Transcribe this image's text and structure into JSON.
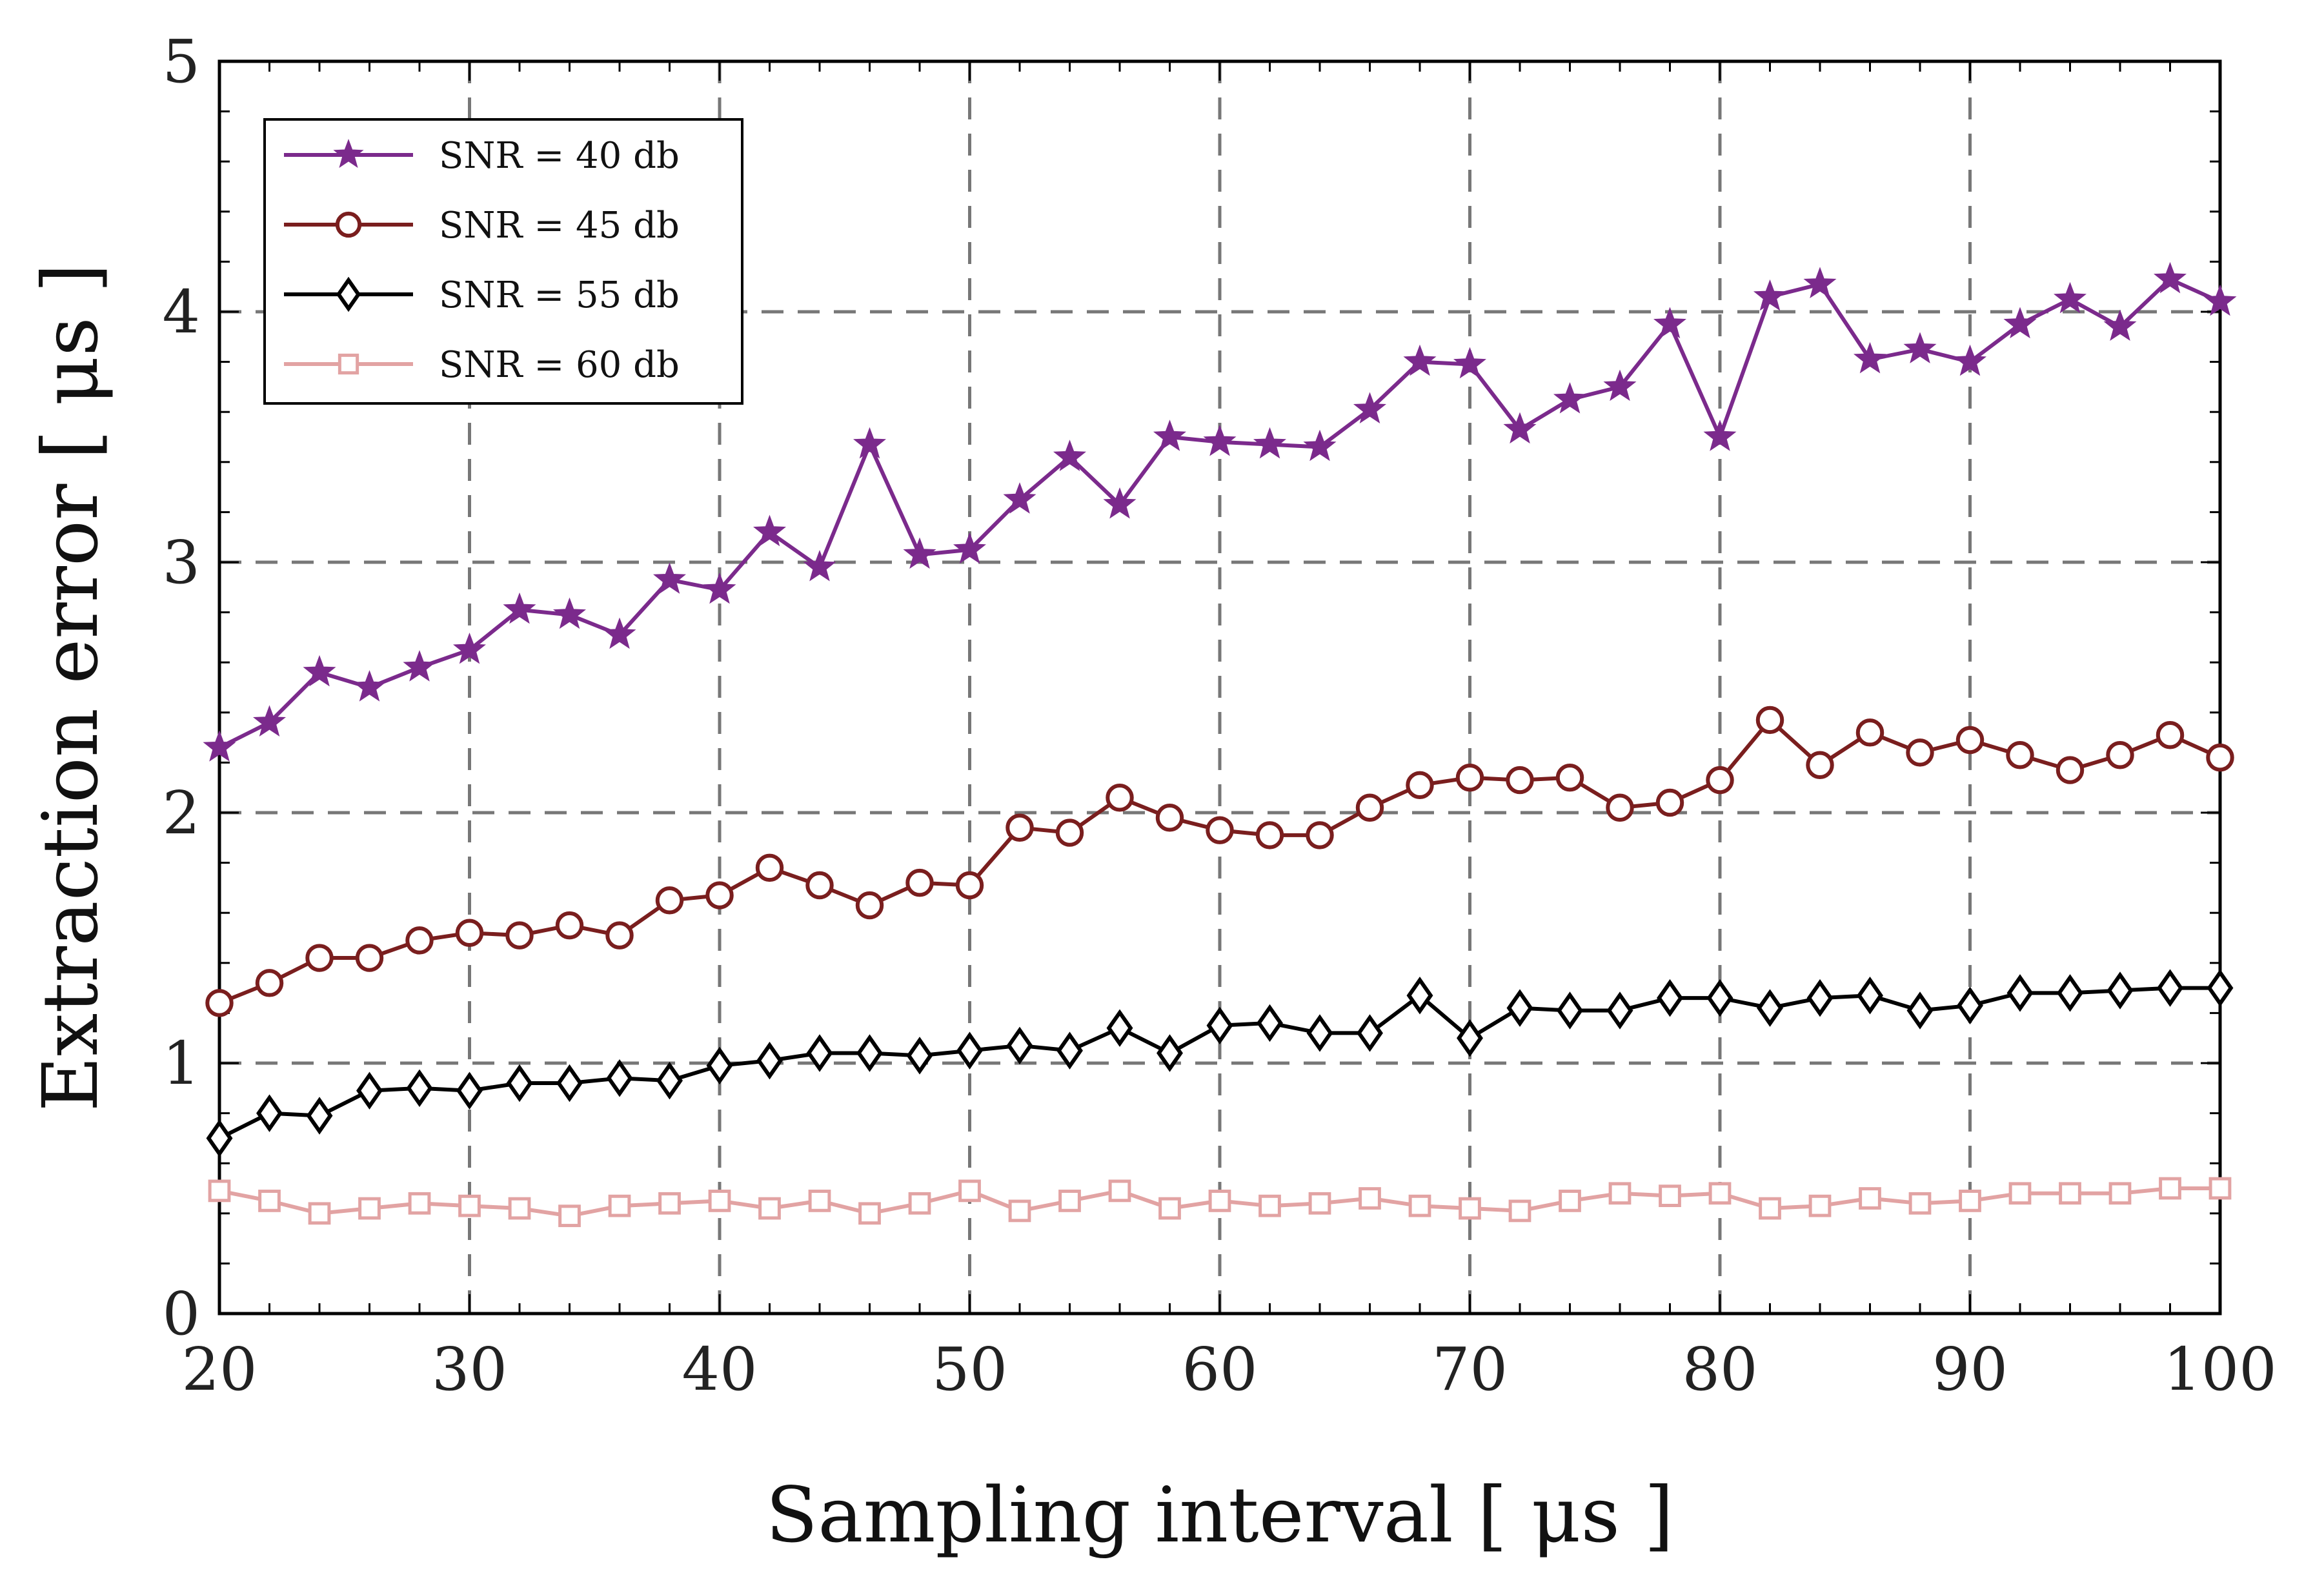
{
  "chart_data": {
    "type": "line",
    "title": "",
    "xlabel": "Sampling interval [ μs ]",
    "ylabel": "Extraction error [ μs ]",
    "xlim": [
      20,
      100
    ],
    "ylim": [
      0,
      5
    ],
    "xticks": [
      20,
      30,
      40,
      50,
      60,
      70,
      80,
      90,
      100
    ],
    "yticks": [
      0,
      1,
      2,
      3,
      4,
      5
    ],
    "grid": true,
    "legend_position": "top-left",
    "x": [
      20,
      22,
      24,
      26,
      28,
      30,
      32,
      34,
      36,
      38,
      40,
      42,
      44,
      46,
      48,
      50,
      52,
      54,
      56,
      58,
      60,
      62,
      64,
      66,
      68,
      70,
      72,
      74,
      76,
      78,
      80,
      82,
      84,
      86,
      88,
      90,
      92,
      94,
      96,
      98,
      100
    ],
    "series": [
      {
        "name": "SNR = 40 db",
        "color": "#7b2a8c",
        "marker": "star",
        "values": [
          2.26,
          2.36,
          2.56,
          2.5,
          2.58,
          2.65,
          2.81,
          2.79,
          2.71,
          2.93,
          2.89,
          3.12,
          2.98,
          3.47,
          3.03,
          3.05,
          3.25,
          3.42,
          3.23,
          3.5,
          3.48,
          3.47,
          3.46,
          3.61,
          3.8,
          3.79,
          3.53,
          3.65,
          3.7,
          3.95,
          3.5,
          4.06,
          4.11,
          3.81,
          3.85,
          3.8,
          3.95,
          4.05,
          3.94,
          4.13,
          4.04
        ]
      },
      {
        "name": "SNR = 45 db",
        "color": "#7a1e1e",
        "marker": "circle",
        "values": [
          1.24,
          1.32,
          1.42,
          1.42,
          1.49,
          1.52,
          1.51,
          1.55,
          1.51,
          1.65,
          1.67,
          1.78,
          1.71,
          1.63,
          1.72,
          1.71,
          1.94,
          1.92,
          2.06,
          1.98,
          1.93,
          1.91,
          1.91,
          2.02,
          2.11,
          2.14,
          2.13,
          2.14,
          2.02,
          2.04,
          2.13,
          2.37,
          2.19,
          2.32,
          2.24,
          2.29,
          2.23,
          2.17,
          2.23,
          2.31,
          2.22
        ]
      },
      {
        "name": "SNR = 55 db",
        "color": "#000000",
        "marker": "diamond",
        "values": [
          0.7,
          0.8,
          0.79,
          0.89,
          0.9,
          0.89,
          0.92,
          0.92,
          0.94,
          0.93,
          0.99,
          1.01,
          1.04,
          1.04,
          1.03,
          1.05,
          1.07,
          1.05,
          1.14,
          1.04,
          1.15,
          1.16,
          1.12,
          1.12,
          1.27,
          1.1,
          1.22,
          1.21,
          1.21,
          1.26,
          1.26,
          1.22,
          1.26,
          1.27,
          1.21,
          1.23,
          1.28,
          1.28,
          1.29,
          1.3,
          1.3
        ]
      },
      {
        "name": "SNR = 60 db",
        "color": "#e2a3a3",
        "marker": "square",
        "values": [
          0.49,
          0.45,
          0.4,
          0.42,
          0.44,
          0.43,
          0.42,
          0.39,
          0.43,
          0.44,
          0.45,
          0.42,
          0.45,
          0.4,
          0.44,
          0.49,
          0.41,
          0.45,
          0.49,
          0.42,
          0.45,
          0.43,
          0.44,
          0.46,
          0.43,
          0.42,
          0.41,
          0.45,
          0.48,
          0.47,
          0.48,
          0.42,
          0.43,
          0.46,
          0.44,
          0.45,
          0.48,
          0.48,
          0.48,
          0.5,
          0.5
        ]
      }
    ]
  }
}
